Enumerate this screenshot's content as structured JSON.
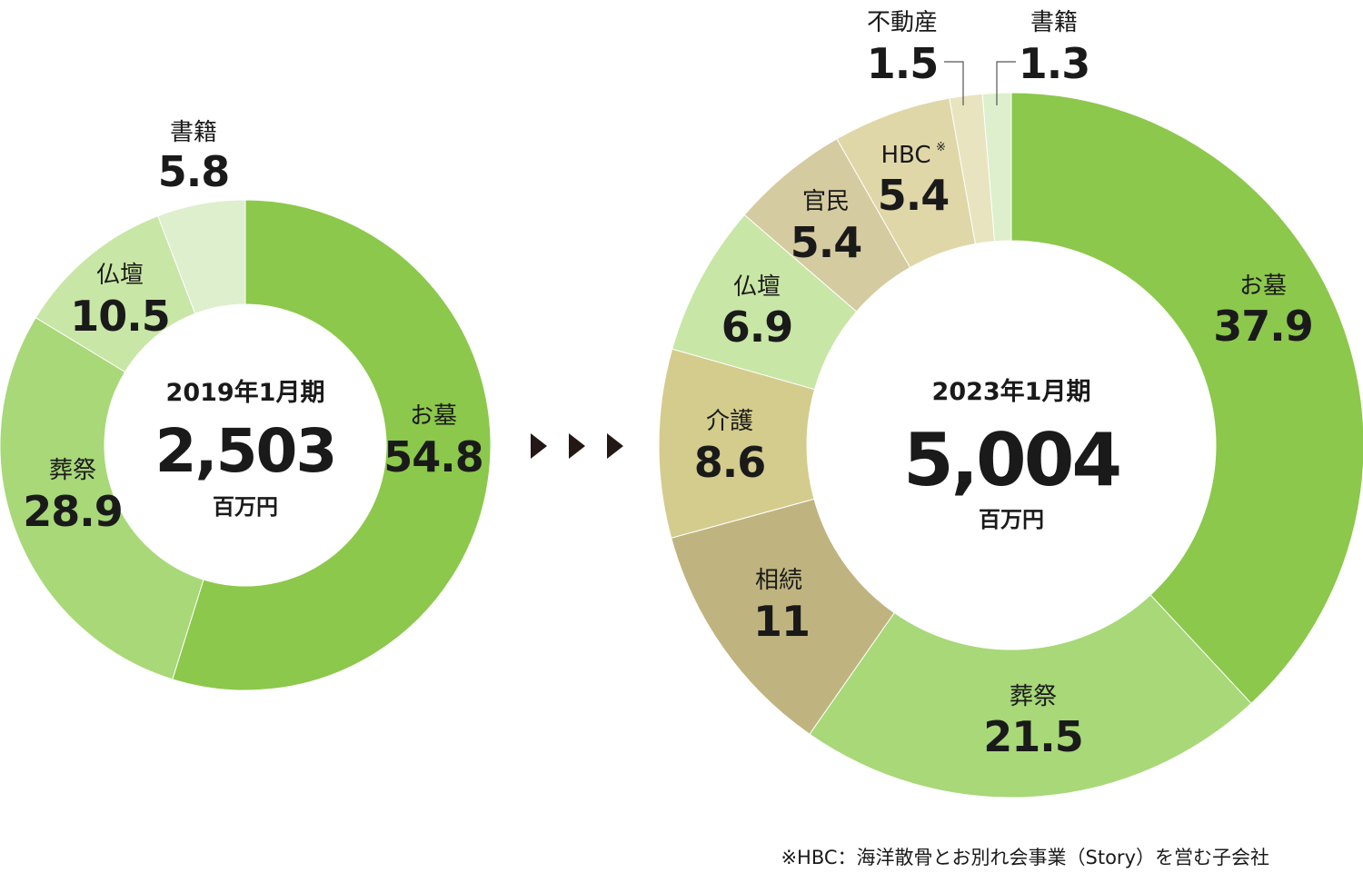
{
  "chart_data": [
    {
      "type": "pie",
      "period": "2019年1月期",
      "total": "2,503",
      "unit": "百万円",
      "slices": [
        {
          "name": "お墓",
          "value": 54.8,
          "color": "#8cc84b"
        },
        {
          "name": "葬祭",
          "value": 28.9,
          "color": "#a8d878"
        },
        {
          "name": "仏壇",
          "value": 10.5,
          "color": "#c8e6a5"
        },
        {
          "name": "書籍",
          "value": 5.8,
          "color": "#ddefcc"
        }
      ]
    },
    {
      "type": "pie",
      "period": "2023年1月期",
      "total": "5,004",
      "unit": "百万円",
      "slices": [
        {
          "name": "お墓",
          "value": 37.9,
          "color": "#8cc84b"
        },
        {
          "name": "葬祭",
          "value": 21.5,
          "color": "#a8d878"
        },
        {
          "name": "相続",
          "value": 11.0,
          "color": "#bfb47f"
        },
        {
          "name": "介護",
          "value": 8.6,
          "color": "#d3cc8c"
        },
        {
          "name": "仏壇",
          "value": 6.9,
          "color": "#c8e6a5"
        },
        {
          "name": "官民",
          "value": 5.4,
          "color": "#d5cba0"
        },
        {
          "name": "HBC",
          "value": 5.4,
          "color": "#e0d7a8",
          "mark": "※"
        },
        {
          "name": "不動産",
          "value": 1.5,
          "color": "#e8e4bf"
        },
        {
          "name": "書籍",
          "value": 1.3,
          "color": "#ddefcc"
        }
      ]
    }
  ],
  "arrow_icon": "triangle-right-icon",
  "footnote": "※HBC：海洋散骨とお別れ会事業（Story）を営む子会社"
}
